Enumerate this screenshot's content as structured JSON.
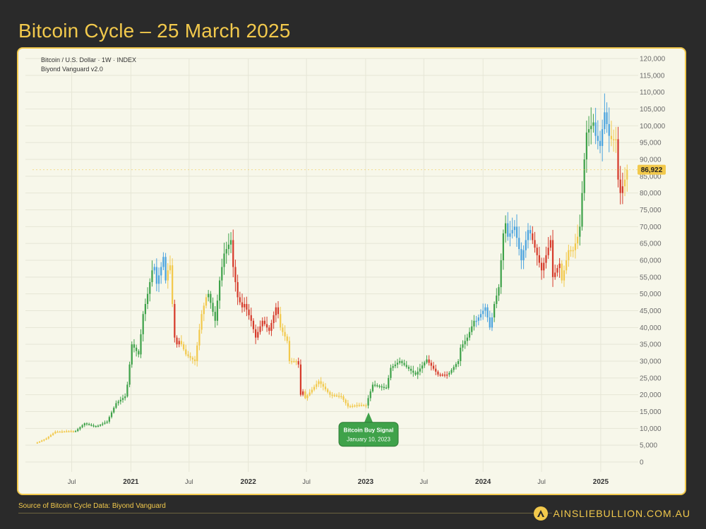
{
  "page": {
    "title": "Bitcoin Cycle – 25 March 2025",
    "source_note": "Source of Bitcoin Cycle Data: Biyond Vanguard",
    "brand": "AINSLIEBULLION.COM.AU"
  },
  "chart_data": {
    "type": "candlestick",
    "header_lines": [
      "Bitcoin / U.S. Dollar · 1W · INDEX",
      "Biyond Vanguard v2.0"
    ],
    "y_axis": {
      "side": "right",
      "range": [
        0,
        120000
      ],
      "ticks": [
        "120,000",
        "115,000",
        "110,000",
        "105,000",
        "100,000",
        "95,000",
        "90,000",
        "85,000",
        "80,000",
        "75,000",
        "70,000",
        "65,000",
        "60,000",
        "55,000",
        "50,000",
        "45,000",
        "40,000",
        "35,000",
        "30,000",
        "25,000",
        "20,000",
        "15,000",
        "10,000",
        "5,000",
        "0"
      ]
    },
    "x_axis": {
      "ticks": [
        {
          "label": "Jul",
          "date": "2020-07-01",
          "bold": false
        },
        {
          "label": "2021",
          "date": "2021-01-01",
          "bold": true
        },
        {
          "label": "Jul",
          "date": "2021-07-01",
          "bold": false
        },
        {
          "label": "2022",
          "date": "2022-01-01",
          "bold": true
        },
        {
          "label": "Jul",
          "date": "2022-07-01",
          "bold": false
        },
        {
          "label": "2023",
          "date": "2023-01-01",
          "bold": true
        },
        {
          "label": "Jul",
          "date": "2023-07-01",
          "bold": false
        },
        {
          "label": "2024",
          "date": "2024-01-01",
          "bold": true
        },
        {
          "label": "Jul",
          "date": "2024-07-01",
          "bold": false
        },
        {
          "label": "2025",
          "date": "2025-01-01",
          "bold": true
        }
      ]
    },
    "grid": true,
    "current_price": {
      "label": "86,922",
      "value": 86922,
      "color": "#f2c94c"
    },
    "annotation": {
      "line1": "Bitcoin Buy Signal",
      "line2": "January 10, 2023",
      "date": "2023-01-10",
      "value": 16000,
      "color": "#3fa24a"
    },
    "signal_colors": {
      "green": "#3fa24a",
      "blue": "#4aa3df",
      "yellow": "#f2c94c",
      "red": "#d63a2a"
    },
    "segments": [
      {
        "start": "2020-03-16",
        "end": "2020-07-06",
        "signal": "yellow",
        "points": [
          [
            "2020-03-16",
            5800
          ],
          [
            "2020-04-13",
            7000
          ],
          [
            "2020-05-11",
            9000
          ],
          [
            "2020-07-06",
            9200
          ]
        ]
      },
      {
        "start": "2020-07-13",
        "end": "2020-12-14",
        "signal": "green",
        "points": [
          [
            "2020-07-13",
            9200
          ],
          [
            "2020-08-10",
            11500
          ],
          [
            "2020-09-14",
            10500
          ],
          [
            "2020-10-19",
            12000
          ],
          [
            "2020-11-16",
            17500
          ],
          [
            "2020-12-14",
            19500
          ]
        ]
      },
      {
        "start": "2020-12-21",
        "end": "2021-03-08",
        "signal": "green",
        "points": [
          [
            "2020-12-21",
            23000
          ],
          [
            "2021-01-04",
            35000
          ],
          [
            "2021-01-25",
            32000
          ],
          [
            "2021-02-08",
            44000
          ],
          [
            "2021-02-22",
            50000
          ],
          [
            "2021-03-08",
            57000
          ]
        ]
      },
      {
        "start": "2021-03-15",
        "end": "2021-04-19",
        "signal": "blue",
        "points": [
          [
            "2021-03-15",
            58000
          ],
          [
            "2021-03-22",
            53000
          ],
          [
            "2021-04-05",
            58000
          ],
          [
            "2021-04-12",
            61000
          ],
          [
            "2021-04-19",
            54000
          ]
        ]
      },
      {
        "start": "2021-04-26",
        "end": "2021-05-10",
        "signal": "yellow",
        "points": [
          [
            "2021-04-26",
            57000
          ],
          [
            "2021-05-03",
            58500
          ],
          [
            "2021-05-10",
            47000
          ]
        ]
      },
      {
        "start": "2021-05-17",
        "end": "2021-05-31",
        "signal": "red",
        "points": [
          [
            "2021-05-17",
            37000
          ],
          [
            "2021-05-24",
            35000
          ],
          [
            "2021-05-31",
            36000
          ]
        ]
      },
      {
        "start": "2021-06-07",
        "end": "2021-08-23",
        "signal": "yellow",
        "points": [
          [
            "2021-06-07",
            35000
          ],
          [
            "2021-06-21",
            32000
          ],
          [
            "2021-07-19",
            30000
          ],
          [
            "2021-08-09",
            44000
          ],
          [
            "2021-08-23",
            49000
          ]
        ]
      },
      {
        "start": "2021-08-30",
        "end": "2021-11-08",
        "signal": "green",
        "points": [
          [
            "2021-08-30",
            50000
          ],
          [
            "2021-09-20",
            42000
          ],
          [
            "2021-10-04",
            54000
          ],
          [
            "2021-10-18",
            62000
          ],
          [
            "2021-11-08",
            66000
          ]
        ]
      },
      {
        "start": "2021-11-15",
        "end": "2021-12-13",
        "signal": "red",
        "points": [
          [
            "2021-11-15",
            58000
          ],
          [
            "2021-11-29",
            49000
          ],
          [
            "2021-12-13",
            46000
          ]
        ]
      },
      {
        "start": "2021-12-20",
        "end": "2022-04-04",
        "signal": "red",
        "points": [
          [
            "2021-12-20",
            47000
          ],
          [
            "2022-01-10",
            42000
          ],
          [
            "2022-01-24",
            37000
          ],
          [
            "2022-02-14",
            42000
          ],
          [
            "2022-03-07",
            39000
          ],
          [
            "2022-03-28",
            46000
          ],
          [
            "2022-04-04",
            44000
          ]
        ]
      },
      {
        "start": "2022-04-11",
        "end": "2022-05-30",
        "signal": "yellow",
        "points": [
          [
            "2022-04-11",
            40000
          ],
          [
            "2022-05-02",
            36000
          ],
          [
            "2022-05-09",
            30000
          ],
          [
            "2022-05-30",
            30000
          ]
        ]
      },
      {
        "start": "2022-06-06",
        "end": "2022-06-20",
        "signal": "red",
        "points": [
          [
            "2022-06-06",
            29000
          ],
          [
            "2022-06-13",
            20000
          ],
          [
            "2022-06-20",
            21000
          ]
        ]
      },
      {
        "start": "2022-06-27",
        "end": "2023-01-02",
        "signal": "yellow",
        "points": [
          [
            "2022-06-27",
            19000
          ],
          [
            "2022-08-08",
            24000
          ],
          [
            "2022-09-12",
            20000
          ],
          [
            "2022-10-17",
            19500
          ],
          [
            "2022-11-07",
            16500
          ],
          [
            "2022-12-12",
            17000
          ],
          [
            "2023-01-02",
            16800
          ]
        ]
      },
      {
        "start": "2023-01-09",
        "end": "2023-07-10",
        "signal": "green",
        "points": [
          [
            "2023-01-09",
            19000
          ],
          [
            "2023-01-23",
            23000
          ],
          [
            "2023-03-06",
            22000
          ],
          [
            "2023-03-20",
            28000
          ],
          [
            "2023-04-17",
            30000
          ],
          [
            "2023-06-05",
            26000
          ],
          [
            "2023-07-10",
            30500
          ]
        ]
      },
      {
        "start": "2023-07-17",
        "end": "2023-09-11",
        "signal": "red",
        "points": [
          [
            "2023-07-17",
            29500
          ],
          [
            "2023-08-14",
            26000
          ],
          [
            "2023-09-11",
            26000
          ]
        ]
      },
      {
        "start": "2023-09-18",
        "end": "2023-12-04",
        "signal": "green",
        "points": [
          [
            "2023-09-18",
            26500
          ],
          [
            "2023-10-16",
            30000
          ],
          [
            "2023-10-23",
            34000
          ],
          [
            "2023-11-13",
            37000
          ],
          [
            "2023-12-04",
            42000
          ]
        ]
      },
      {
        "start": "2023-12-11",
        "end": "2024-01-29",
        "signal": "blue",
        "points": [
          [
            "2023-12-11",
            42000
          ],
          [
            "2024-01-08",
            46000
          ],
          [
            "2024-01-22",
            40000
          ],
          [
            "2024-01-29",
            43000
          ]
        ]
      },
      {
        "start": "2024-02-05",
        "end": "2024-03-11",
        "signal": "green",
        "points": [
          [
            "2024-02-05",
            47000
          ],
          [
            "2024-02-19",
            52000
          ],
          [
            "2024-03-04",
            68000
          ],
          [
            "2024-03-11",
            71000
          ]
        ]
      },
      {
        "start": "2024-03-18",
        "end": "2024-05-27",
        "signal": "blue",
        "points": [
          [
            "2024-03-18",
            67000
          ],
          [
            "2024-04-08",
            70000
          ],
          [
            "2024-04-29",
            60000
          ],
          [
            "2024-05-20",
            69000
          ],
          [
            "2024-05-27",
            68000
          ]
        ]
      },
      {
        "start": "2024-06-03",
        "end": "2024-08-26",
        "signal": "red",
        "points": [
          [
            "2024-06-03",
            66000
          ],
          [
            "2024-07-01",
            57000
          ],
          [
            "2024-07-29",
            66000
          ],
          [
            "2024-08-05",
            55000
          ],
          [
            "2024-08-26",
            59000
          ]
        ]
      },
      {
        "start": "2024-09-02",
        "end": "2024-10-21",
        "signal": "yellow",
        "points": [
          [
            "2024-09-02",
            54000
          ],
          [
            "2024-09-23",
            63000
          ],
          [
            "2024-10-07",
            63000
          ],
          [
            "2024-10-21",
            67000
          ]
        ]
      },
      {
        "start": "2024-10-28",
        "end": "2024-12-09",
        "signal": "green",
        "points": [
          [
            "2024-10-28",
            70000
          ],
          [
            "2024-11-11",
            90000
          ],
          [
            "2024-11-18",
            98000
          ],
          [
            "2024-12-09",
            101000
          ]
        ]
      },
      {
        "start": "2024-12-16",
        "end": "2025-01-27",
        "signal": "blue",
        "points": [
          [
            "2024-12-16",
            97000
          ],
          [
            "2024-12-30",
            94000
          ],
          [
            "2025-01-13",
            104000
          ],
          [
            "2025-01-27",
            97000
          ]
        ]
      },
      {
        "start": "2025-02-03",
        "end": "2025-02-17",
        "signal": "yellow",
        "points": [
          [
            "2025-02-03",
            96000
          ],
          [
            "2025-02-17",
            96000
          ]
        ]
      },
      {
        "start": "2025-02-24",
        "end": "2025-03-10",
        "signal": "red",
        "points": [
          [
            "2025-02-24",
            84000
          ],
          [
            "2025-03-03",
            80000
          ],
          [
            "2025-03-10",
            82000
          ]
        ]
      },
      {
        "start": "2025-03-17",
        "end": "2025-03-24",
        "signal": "yellow",
        "points": [
          [
            "2025-03-17",
            84000
          ],
          [
            "2025-03-24",
            86922
          ]
        ]
      }
    ]
  }
}
